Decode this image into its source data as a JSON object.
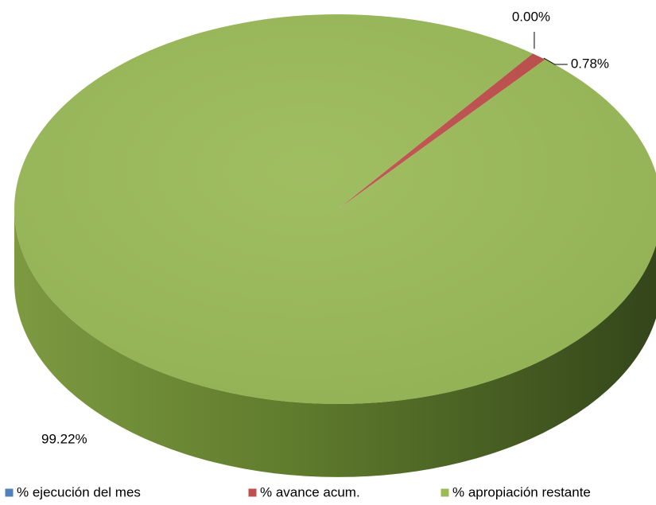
{
  "chart_data": {
    "type": "pie",
    "categories": [
      "% ejecución del mes",
      "% avance acum.",
      "% apropiación restante"
    ],
    "values": [
      0,
      0.78,
      99.22
    ],
    "value_labels": [
      "0.00%",
      "0.78%",
      "99.22%"
    ],
    "colors": [
      "#4f81bd",
      "#c0504d",
      "#9bbb59"
    ],
    "legend": "bottom"
  }
}
